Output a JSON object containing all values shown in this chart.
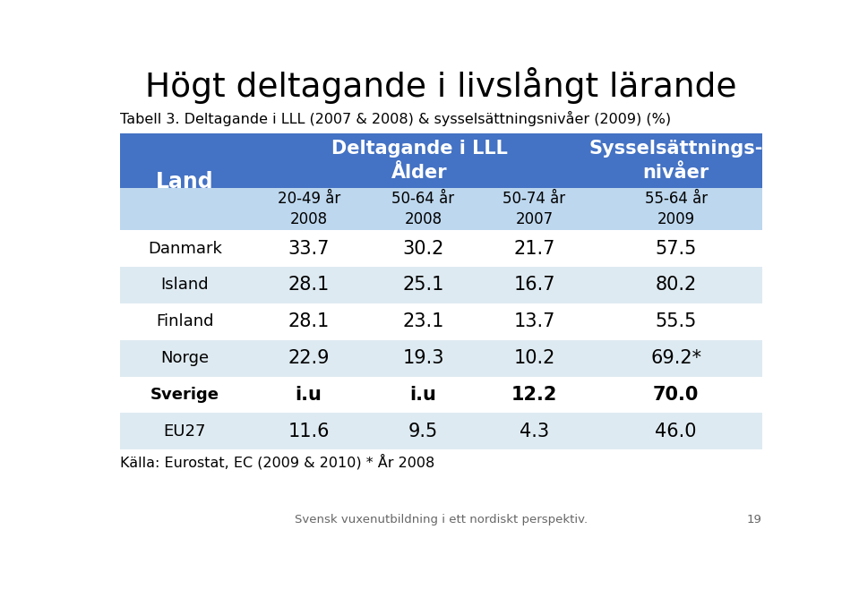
{
  "title": "Högt deltagande i livslångt lärande",
  "subtitle": "Tabell 3. Deltagande i LLL (2007 & 2008) & sysselsättningsnivåer (2009) (%)",
  "col_header1": "Deltagande i LLL\nÅlder",
  "col_header2": "Sysselsättnings-\nnivåer",
  "sub_headers": [
    "20-49 år\n2008",
    "50-64 år\n2008",
    "50-74 år\n2007",
    "55-64 år\n2009"
  ],
  "row_label_header": "Land",
  "rows": [
    {
      "land": "Danmark",
      "bold": false,
      "values": [
        "33.7",
        "30.2",
        "21.7",
        "57.5"
      ]
    },
    {
      "land": "Island",
      "bold": false,
      "values": [
        "28.1",
        "25.1",
        "16.7",
        "80.2"
      ]
    },
    {
      "land": "Finland",
      "bold": false,
      "values": [
        "28.1",
        "23.1",
        "13.7",
        "55.5"
      ]
    },
    {
      "land": "Norge",
      "bold": false,
      "values": [
        "22.9",
        "19.3",
        "10.2",
        "69.2*"
      ]
    },
    {
      "land": "Sverige",
      "bold": true,
      "values": [
        "i.u",
        "i.u",
        "12.2",
        "70.0"
      ]
    },
    {
      "land": "EU27",
      "bold": false,
      "values": [
        "11.6",
        "9.5",
        "4.3",
        "46.0"
      ]
    }
  ],
  "footer": "Källa: Eurostat, EC (2009 & 2010) * År 2008",
  "page_footer": "Svensk vuxenutbildning i ett nordiskt perspektiv.",
  "page_number": "19",
  "header_bg": "#4472C4",
  "header_text": "#FFFFFF",
  "subheader_bg": "#BDD7EE",
  "subheader_text": "#000000",
  "row_colors": [
    "#FFFFFF",
    "#DEEAF1",
    "#FFFFFF",
    "#DEEAF1",
    "#FFFFFF",
    "#DEEAF1"
  ],
  "row_text": "#000000",
  "title_color": "#000000",
  "subtitle_color": "#000000"
}
